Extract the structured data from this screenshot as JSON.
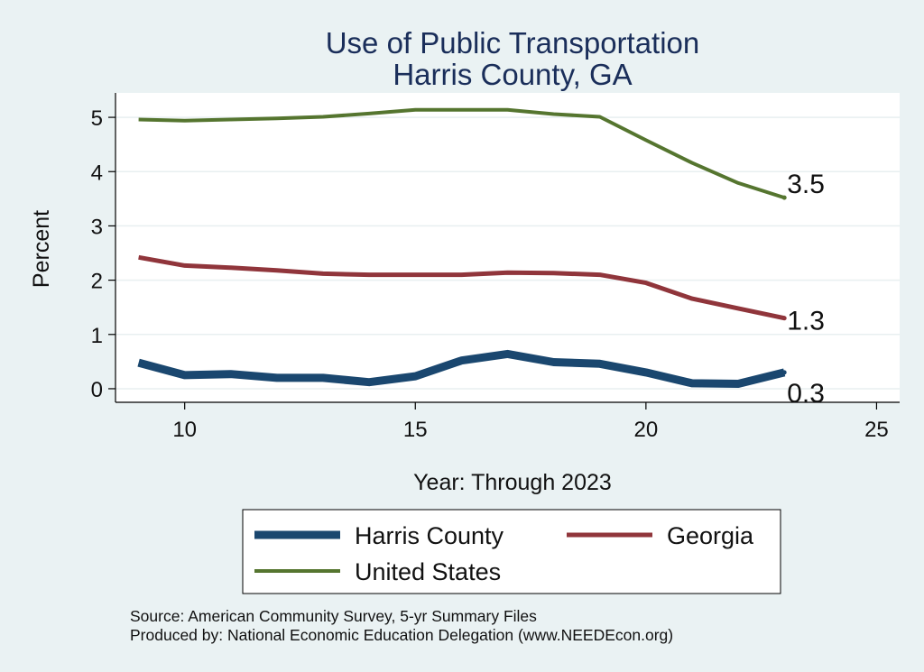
{
  "colors": {
    "background": "#eaf2f3",
    "plot_background": "#ffffff",
    "grid": "#e8eff0",
    "harris": "#1a476f",
    "georgia": "#90353b",
    "us": "#55752f"
  },
  "chart_data": {
    "type": "line",
    "title": "Use of Public Transportation",
    "subtitle": "Harris County, GA",
    "xlabel": "Year: Through 2023",
    "ylabel": "Percent",
    "xlim": [
      8.5,
      25.5
    ],
    "ylim": [
      -0.25,
      5.45
    ],
    "xticks": [
      10,
      15,
      20,
      25
    ],
    "yticks": [
      0,
      1,
      2,
      3,
      4,
      5
    ],
    "grid": true,
    "legend_position": "bottom",
    "x": [
      9,
      10,
      11,
      12,
      13,
      14,
      15,
      16,
      17,
      18,
      19,
      20,
      21,
      22,
      23
    ],
    "series": [
      {
        "name": "Harris County",
        "color_key": "harris",
        "values": [
          0.48,
          0.25,
          0.27,
          0.2,
          0.2,
          0.12,
          0.23,
          0.52,
          0.64,
          0.49,
          0.46,
          0.3,
          0.1,
          0.09,
          0.3
        ],
        "end_label": "0.3"
      },
      {
        "name": "Georgia",
        "color_key": "georgia",
        "values": [
          2.42,
          2.27,
          2.23,
          2.18,
          2.12,
          2.1,
          2.1,
          2.1,
          2.14,
          2.13,
          2.1,
          1.95,
          1.66,
          1.48,
          1.3
        ],
        "end_label": "1.3"
      },
      {
        "name": "United States",
        "color_key": "us",
        "values": [
          4.96,
          4.94,
          4.96,
          4.98,
          5.01,
          5.07,
          5.14,
          5.14,
          5.14,
          5.06,
          5.01,
          4.58,
          4.16,
          3.79,
          3.52
        ],
        "end_label": "3.5"
      }
    ]
  },
  "notes": {
    "source": "Source: American Community Survey, 5-yr Summary Files",
    "produced_by": "Produced by: National Economic Education Delegation (www.NEEDEcon.org)"
  }
}
